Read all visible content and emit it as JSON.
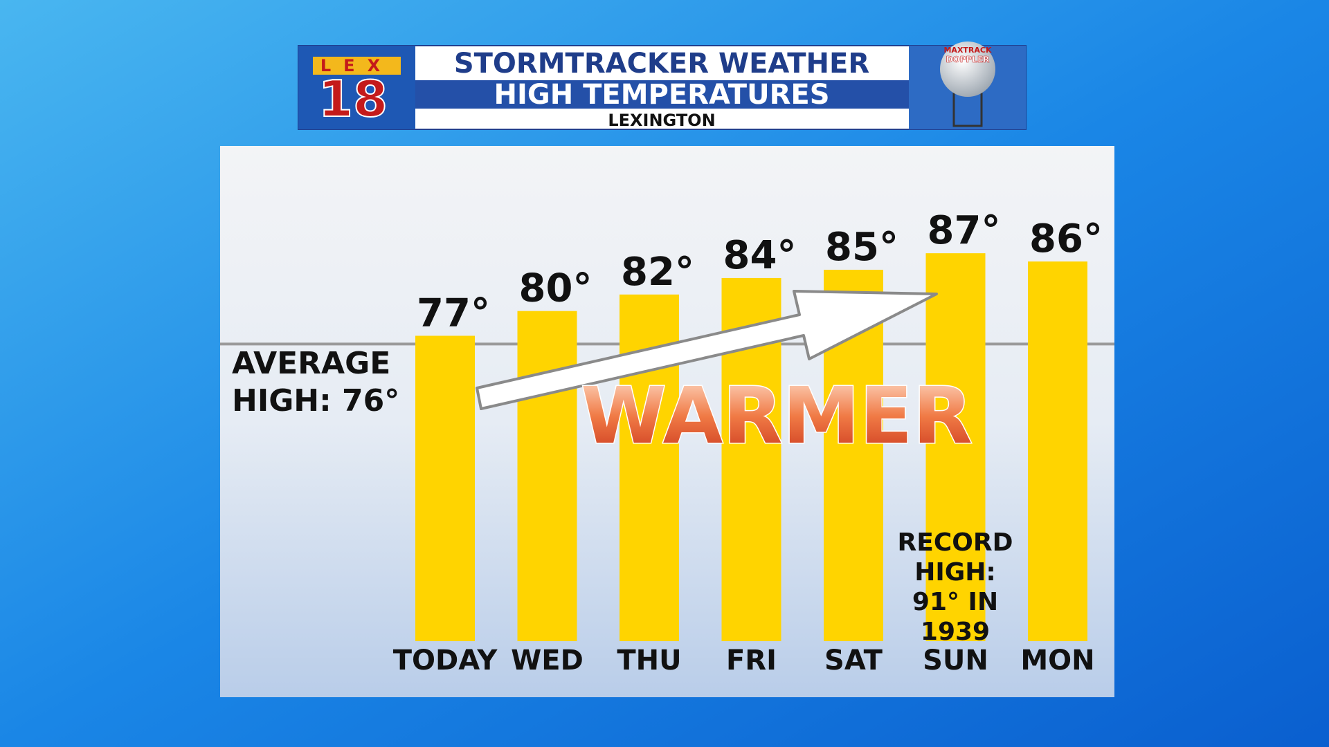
{
  "chart_data": {
    "type": "bar",
    "title": "STORMTRACKER WEATHER",
    "subtitle": "HIGH TEMPERATURES",
    "location": "LEXINGTON",
    "categories": [
      "TODAY",
      "WED",
      "THU",
      "FRI",
      "SAT",
      "SUN",
      "MON"
    ],
    "values": [
      77,
      80,
      82,
      84,
      85,
      87,
      86
    ],
    "value_labels": [
      "77°",
      "80°",
      "82°",
      "84°",
      "85°",
      "87°",
      "86°"
    ],
    "color": "#ffd400",
    "ylim": [
      40,
      100
    ],
    "reference_line": {
      "value": 76,
      "label_lines": [
        "AVERAGE",
        "HIGH: 76°"
      ]
    },
    "annotations": {
      "trend": "WARMER",
      "record_lines": [
        "RECORD",
        "HIGH:",
        "91° IN",
        "1939"
      ]
    }
  },
  "branding": {
    "station": "LEX",
    "channel": "18",
    "radar_lines": [
      "MAXTRACK",
      "DOPPLER"
    ]
  }
}
